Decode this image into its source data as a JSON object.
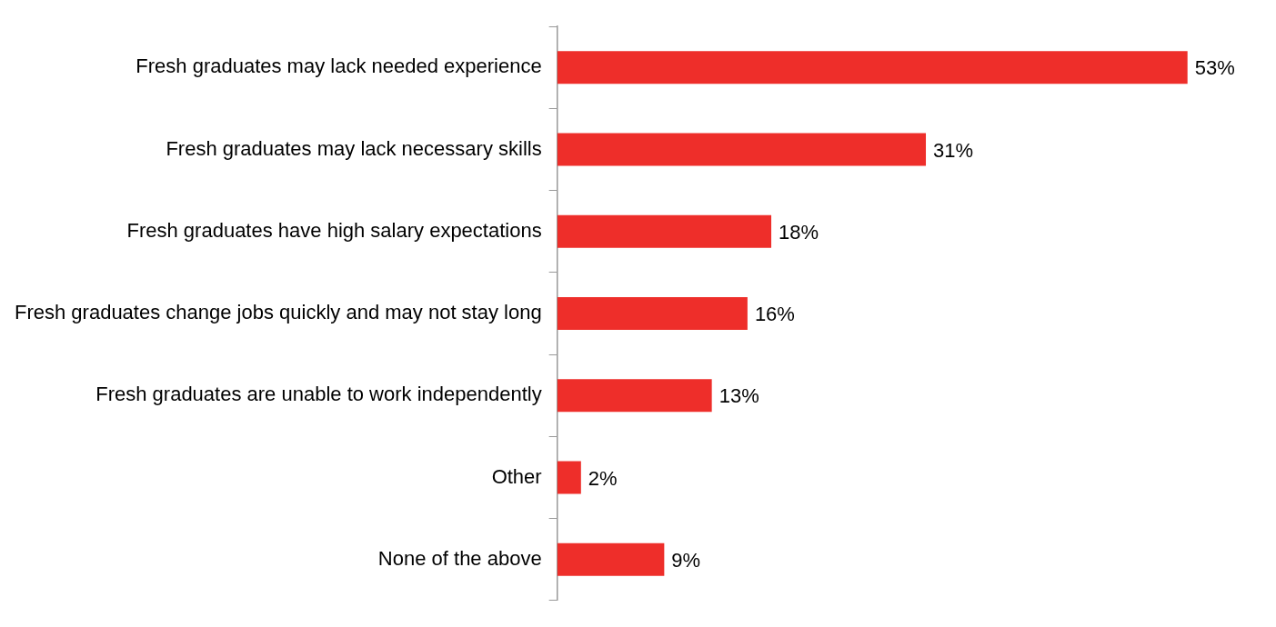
{
  "chart_data": {
    "type": "bar",
    "orientation": "horizontal",
    "categories": [
      "Fresh graduates may lack needed experience",
      "Fresh graduates may lack necessary skills",
      "Fresh graduates have high salary expectations",
      "Fresh graduates change jobs quickly and may not stay long",
      "Fresh graduates are unable to work independently",
      "Other",
      "None of the above"
    ],
    "values": [
      53,
      31,
      18,
      16,
      13,
      2,
      9
    ],
    "value_labels": [
      "53%",
      "31%",
      "18%",
      "16%",
      "13%",
      "2%",
      "9%"
    ],
    "color": "#ee2e2a",
    "grid": false,
    "legend": false
  }
}
